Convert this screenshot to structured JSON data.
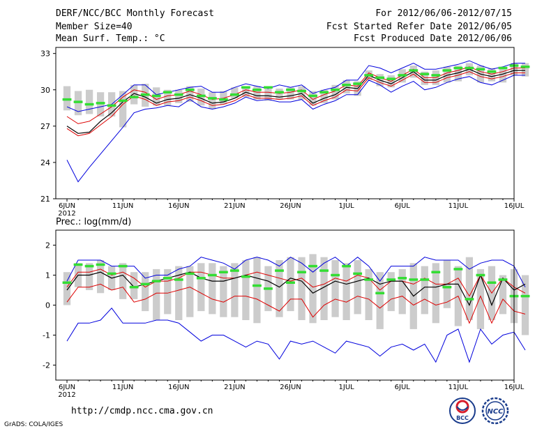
{
  "header": {
    "title": "DERF/NCC/BCC Monthly Forecast",
    "member_size": "Member Size=40",
    "variable": "Mean Surf. Temp.: °C",
    "forecast_period": "For 2012/06/06-2012/07/15",
    "started_refer": "Fcst Started Refer Date 2012/06/05",
    "produced": "Fcst Produced Date 2012/06/06"
  },
  "footer": {
    "url": "http://cmdp.ncc.cma.gov.cn",
    "credit": "GrADS: COLA/IGES",
    "logo_left_text": "BCC",
    "logo_right_text": "NCC"
  },
  "colors": {
    "max_line": "#0000dd",
    "mean_line": "#000000",
    "member_line": "#dd0000",
    "climatology": "#33dd33",
    "spread_box": "#cccccc"
  },
  "chart_data": [
    {
      "type": "line",
      "title": "Mean Surf. Temp.: °C",
      "xlabel": "",
      "ylabel": "°C",
      "ylim": [
        21,
        33.5
      ],
      "yticks": [
        21,
        24,
        27,
        30,
        33
      ],
      "x_tick_days": [
        0,
        5,
        10,
        15,
        20,
        25,
        30,
        35,
        40
      ],
      "x_tick_labels": [
        "6JUN",
        "11JUN",
        "16JUN",
        "21JUN",
        "26JUN",
        "1JUL",
        "6JUL",
        "11JUL",
        "16JUL"
      ],
      "x_year_label": "2012",
      "xlim": [
        -1,
        40
      ],
      "series": [
        {
          "name": "max",
          "color": "#0000dd",
          "values": [
            28.6,
            28.2,
            28.4,
            28.6,
            28.8,
            29.6,
            30.4,
            30.4,
            29.6,
            29.8,
            30.0,
            30.2,
            30.3,
            29.8,
            29.8,
            30.2,
            30.5,
            30.3,
            30.1,
            30.4,
            30.2,
            30.4,
            29.7,
            30.0,
            30.2,
            30.8,
            30.8,
            32.0,
            31.8,
            31.4,
            31.8,
            32.2,
            31.7,
            31.7,
            31.9,
            32.1,
            32.4,
            32.0,
            31.7,
            31.9,
            32.2,
            32.2
          ]
        },
        {
          "name": "upper",
          "color": "#dd0000",
          "values": [
            27.8,
            27.2,
            27.4,
            28.0,
            28.6,
            29.4,
            30.0,
            29.8,
            29.2,
            29.5,
            29.6,
            29.9,
            29.6,
            29.2,
            29.3,
            29.6,
            30.0,
            29.8,
            29.8,
            29.7,
            29.8,
            30.0,
            29.2,
            29.6,
            29.9,
            30.4,
            30.3,
            31.4,
            31.0,
            30.7,
            31.2,
            31.7,
            31.0,
            31.0,
            31.4,
            31.6,
            31.9,
            31.5,
            31.3,
            31.5,
            31.8,
            31.8
          ]
        },
        {
          "name": "mean",
          "color": "#000000",
          "values": [
            27.0,
            26.4,
            26.5,
            27.4,
            28.1,
            29.0,
            29.7,
            29.4,
            28.9,
            29.2,
            29.3,
            29.6,
            29.3,
            28.9,
            29.0,
            29.3,
            29.8,
            29.5,
            29.5,
            29.4,
            29.5,
            29.7,
            28.9,
            29.3,
            29.6,
            30.2,
            30.1,
            31.2,
            30.8,
            30.5,
            31.0,
            31.5,
            30.8,
            30.8,
            31.2,
            31.4,
            31.7,
            31.3,
            31.1,
            31.3,
            31.6,
            31.6
          ]
        },
        {
          "name": "lower",
          "color": "#dd0000",
          "values": [
            26.8,
            26.2,
            26.4,
            27.1,
            27.8,
            28.8,
            29.5,
            29.2,
            28.7,
            29.0,
            29.1,
            29.4,
            29.1,
            28.7,
            28.8,
            29.1,
            29.6,
            29.3,
            29.3,
            29.2,
            29.3,
            29.5,
            28.7,
            29.1,
            29.4,
            30.0,
            29.9,
            31.0,
            30.6,
            30.3,
            30.8,
            31.3,
            30.6,
            30.6,
            31.0,
            31.2,
            31.5,
            31.1,
            30.9,
            31.1,
            31.4,
            31.4
          ]
        },
        {
          "name": "min",
          "color": "#0000dd",
          "values": [
            24.2,
            22.4,
            23.6,
            24.7,
            25.8,
            26.9,
            28.1,
            28.4,
            28.5,
            28.7,
            28.6,
            29.2,
            28.6,
            28.4,
            28.6,
            28.9,
            29.4,
            29.1,
            29.2,
            29.0,
            29.0,
            29.2,
            28.4,
            28.8,
            29.1,
            29.6,
            29.6,
            30.8,
            30.4,
            29.8,
            30.3,
            30.7,
            30.0,
            30.2,
            30.6,
            30.9,
            31.1,
            30.6,
            30.4,
            30.8,
            31.2,
            31.2
          ]
        }
      ],
      "climatology": [
        29.2,
        29.0,
        28.8,
        28.9,
        28.7,
        29.1,
        29.4,
        29.6,
        29.5,
        29.8,
        29.6,
        30.0,
        29.5,
        29.3,
        29.2,
        29.6,
        30.2,
        30.0,
        30.2,
        29.8,
        30.0,
        29.9,
        29.5,
        29.8,
        30.0,
        30.4,
        30.5,
        31.2,
        31.0,
        30.9,
        31.2,
        31.6,
        31.3,
        31.2,
        31.6,
        31.8,
        31.8,
        31.7,
        31.5,
        31.8,
        32.0,
        31.9
      ],
      "spread_boxes": [
        [
          28.3,
          30.3
        ],
        [
          27.9,
          29.9
        ],
        [
          28.0,
          30.0
        ],
        [
          27.8,
          29.8
        ],
        [
          27.8,
          29.8
        ],
        [
          26.9,
          29.9
        ],
        [
          28.8,
          30.4
        ],
        [
          28.6,
          30.5
        ],
        [
          28.7,
          30.2
        ],
        [
          28.7,
          30.0
        ],
        [
          28.9,
          30.0
        ],
        [
          29.0,
          30.3
        ],
        [
          28.7,
          30.1
        ],
        [
          28.4,
          29.8
        ],
        [
          28.8,
          29.9
        ],
        [
          29.3,
          30.2
        ],
        [
          29.4,
          30.3
        ],
        [
          29.2,
          30.3
        ],
        [
          29.1,
          30.2
        ],
        [
          29.2,
          30.1
        ],
        [
          29.2,
          30.2
        ],
        [
          29.2,
          30.3
        ],
        [
          28.7,
          29.9
        ],
        [
          28.9,
          30.0
        ],
        [
          29.2,
          30.4
        ],
        [
          29.7,
          30.8
        ],
        [
          29.5,
          30.7
        ],
        [
          30.8,
          31.6
        ],
        [
          30.3,
          31.3
        ],
        [
          30.2,
          31.2
        ],
        [
          30.6,
          31.7
        ],
        [
          31.0,
          32.0
        ],
        [
          30.4,
          31.5
        ],
        [
          30.4,
          31.6
        ],
        [
          30.6,
          31.9
        ],
        [
          30.7,
          32.0
        ],
        [
          31.2,
          32.2
        ],
        [
          30.6,
          32.0
        ],
        [
          30.7,
          31.8
        ],
        [
          30.6,
          31.9
        ],
        [
          31.2,
          32.2
        ],
        [
          31.1,
          32.2
        ]
      ]
    },
    {
      "type": "line",
      "title": "Prec.: log(mm/d)",
      "xlabel": "",
      "ylabel": "log(mm/d)",
      "ylim": [
        -2.5,
        2.5
      ],
      "yticks": [
        -2,
        -1,
        0,
        1,
        2
      ],
      "x_tick_days": [
        0,
        5,
        10,
        15,
        20,
        25,
        30,
        35,
        40
      ],
      "x_tick_labels": [
        "6JUN",
        "11JUN",
        "16JUN",
        "21JUN",
        "26JUN",
        "1JUL",
        "6JUL",
        "11JUL",
        "16JUL"
      ],
      "x_year_label": "2012",
      "xlim": [
        -1,
        40
      ],
      "series": [
        {
          "name": "max",
          "color": "#0000dd",
          "values": [
            0.8,
            1.5,
            1.5,
            1.5,
            1.3,
            1.3,
            1.3,
            0.9,
            1.0,
            1.0,
            1.2,
            1.3,
            1.6,
            1.5,
            1.4,
            1.2,
            1.5,
            1.6,
            1.5,
            1.3,
            1.6,
            1.4,
            1.1,
            1.4,
            1.6,
            1.3,
            1.6,
            1.3,
            0.8,
            1.3,
            1.3,
            1.3,
            1.6,
            1.5,
            1.5,
            1.5,
            1.2,
            1.4,
            1.5,
            1.5,
            1.3,
            0.6
          ]
        },
        {
          "name": "upper",
          "color": "#dd0000",
          "values": [
            0.6,
            1.1,
            1.1,
            1.2,
            1.0,
            1.1,
            0.9,
            0.6,
            0.8,
            0.8,
            0.9,
            1.1,
            1.1,
            1.0,
            0.9,
            0.9,
            1.0,
            1.1,
            1.0,
            0.9,
            0.8,
            0.9,
            0.6,
            0.7,
            0.9,
            0.8,
            1.0,
            0.9,
            0.5,
            0.8,
            0.8,
            0.7,
            0.9,
            0.7,
            0.7,
            0.9,
            0.3,
            1.0,
            0.4,
            0.9,
            0.6,
            0.4
          ]
        },
        {
          "name": "mean",
          "color": "#000000",
          "values": [
            0.5,
            1.0,
            1.0,
            1.1,
            0.9,
            1.0,
            0.6,
            0.7,
            0.8,
            0.9,
            1.0,
            1.1,
            0.9,
            0.8,
            0.8,
            0.9,
            1.0,
            0.9,
            0.8,
            0.6,
            0.9,
            0.8,
            0.4,
            0.6,
            0.8,
            0.7,
            0.8,
            0.9,
            0.7,
            0.8,
            0.8,
            0.3,
            0.6,
            0.6,
            0.7,
            0.7,
            0.0,
            1.0,
            0.0,
            0.9,
            0.5,
            0.7
          ]
        },
        {
          "name": "lower",
          "color": "#dd0000",
          "values": [
            0.1,
            0.6,
            0.6,
            0.7,
            0.5,
            0.6,
            0.1,
            0.2,
            0.4,
            0.4,
            0.5,
            0.6,
            0.4,
            0.2,
            0.1,
            0.3,
            0.3,
            0.2,
            0.0,
            -0.2,
            0.2,
            0.2,
            -0.4,
            0.0,
            0.2,
            0.1,
            0.3,
            0.2,
            -0.1,
            0.2,
            0.3,
            0.0,
            0.2,
            0.0,
            0.1,
            0.3,
            -0.6,
            0.3,
            -0.6,
            0.2,
            -0.2,
            -0.3
          ]
        },
        {
          "name": "min",
          "color": "#0000dd",
          "values": [
            -1.2,
            -0.6,
            -0.6,
            -0.5,
            -0.1,
            -0.6,
            -0.6,
            -0.6,
            -0.5,
            -0.5,
            -0.6,
            -0.9,
            -1.2,
            -1.0,
            -1.0,
            -1.2,
            -1.4,
            -1.2,
            -1.3,
            -1.8,
            -1.2,
            -1.3,
            -1.2,
            -1.4,
            -1.6,
            -1.2,
            -1.3,
            -1.4,
            -1.7,
            -1.4,
            -1.3,
            -1.5,
            -1.3,
            -1.9,
            -1.0,
            -0.8,
            -1.9,
            -0.8,
            -1.3,
            -1.0,
            -0.9,
            -1.5
          ]
        },
        {
          "name": "climatology",
          "color": "#33dd33",
          "values": [
            0.75,
            1.35,
            1.3,
            1.35,
            1.05,
            1.3,
            0.6,
            0.7,
            0.8,
            0.9,
            0.85,
            1.05,
            0.9,
            1.0,
            1.1,
            1.15,
            0.95,
            0.65,
            0.55,
            1.15,
            0.75,
            1.1,
            1.3,
            1.15,
            1.0,
            1.3,
            1.05,
            0.85,
            0.4,
            0.85,
            0.9,
            0.85,
            0.85,
            1.1,
            0.6,
            1.2,
            0.2,
            1.0,
            0.75,
            0.85,
            0.3,
            0.3
          ]
        }
      ],
      "spread_boxes": [
        [
          0.0,
          1.1
        ],
        [
          0.6,
          1.4
        ],
        [
          0.5,
          1.4
        ],
        [
          0.4,
          1.5
        ],
        [
          0.5,
          1.3
        ],
        [
          0.2,
          1.4
        ],
        [
          0.2,
          1.1
        ],
        [
          -0.2,
          1.1
        ],
        [
          -0.5,
          1.2
        ],
        [
          -0.3,
          1.2
        ],
        [
          -0.5,
          1.3
        ],
        [
          -0.4,
          1.3
        ],
        [
          -0.2,
          1.4
        ],
        [
          -0.3,
          1.4
        ],
        [
          -0.4,
          1.3
        ],
        [
          -0.4,
          1.4
        ],
        [
          -0.5,
          1.5
        ],
        [
          -0.6,
          1.6
        ],
        [
          -0.2,
          1.3
        ],
        [
          -0.4,
          1.5
        ],
        [
          -0.2,
          1.6
        ],
        [
          -0.5,
          1.6
        ],
        [
          -0.6,
          1.7
        ],
        [
          -0.5,
          1.6
        ],
        [
          -0.4,
          1.5
        ],
        [
          -0.5,
          1.4
        ],
        [
          -0.3,
          1.5
        ],
        [
          -0.5,
          1.2
        ],
        [
          -0.8,
          1.1
        ],
        [
          -0.2,
          1.1
        ],
        [
          -0.3,
          1.2
        ],
        [
          -0.8,
          1.4
        ],
        [
          -0.3,
          1.3
        ],
        [
          -0.6,
          1.4
        ],
        [
          -0.1,
          1.5
        ],
        [
          -0.7,
          1.3
        ],
        [
          -0.5,
          1.6
        ],
        [
          -0.8,
          1.2
        ],
        [
          -0.5,
          1.3
        ],
        [
          -0.3,
          1.0
        ],
        [
          -0.6,
          1.2
        ],
        [
          -1.0,
          1.0
        ]
      ]
    }
  ]
}
